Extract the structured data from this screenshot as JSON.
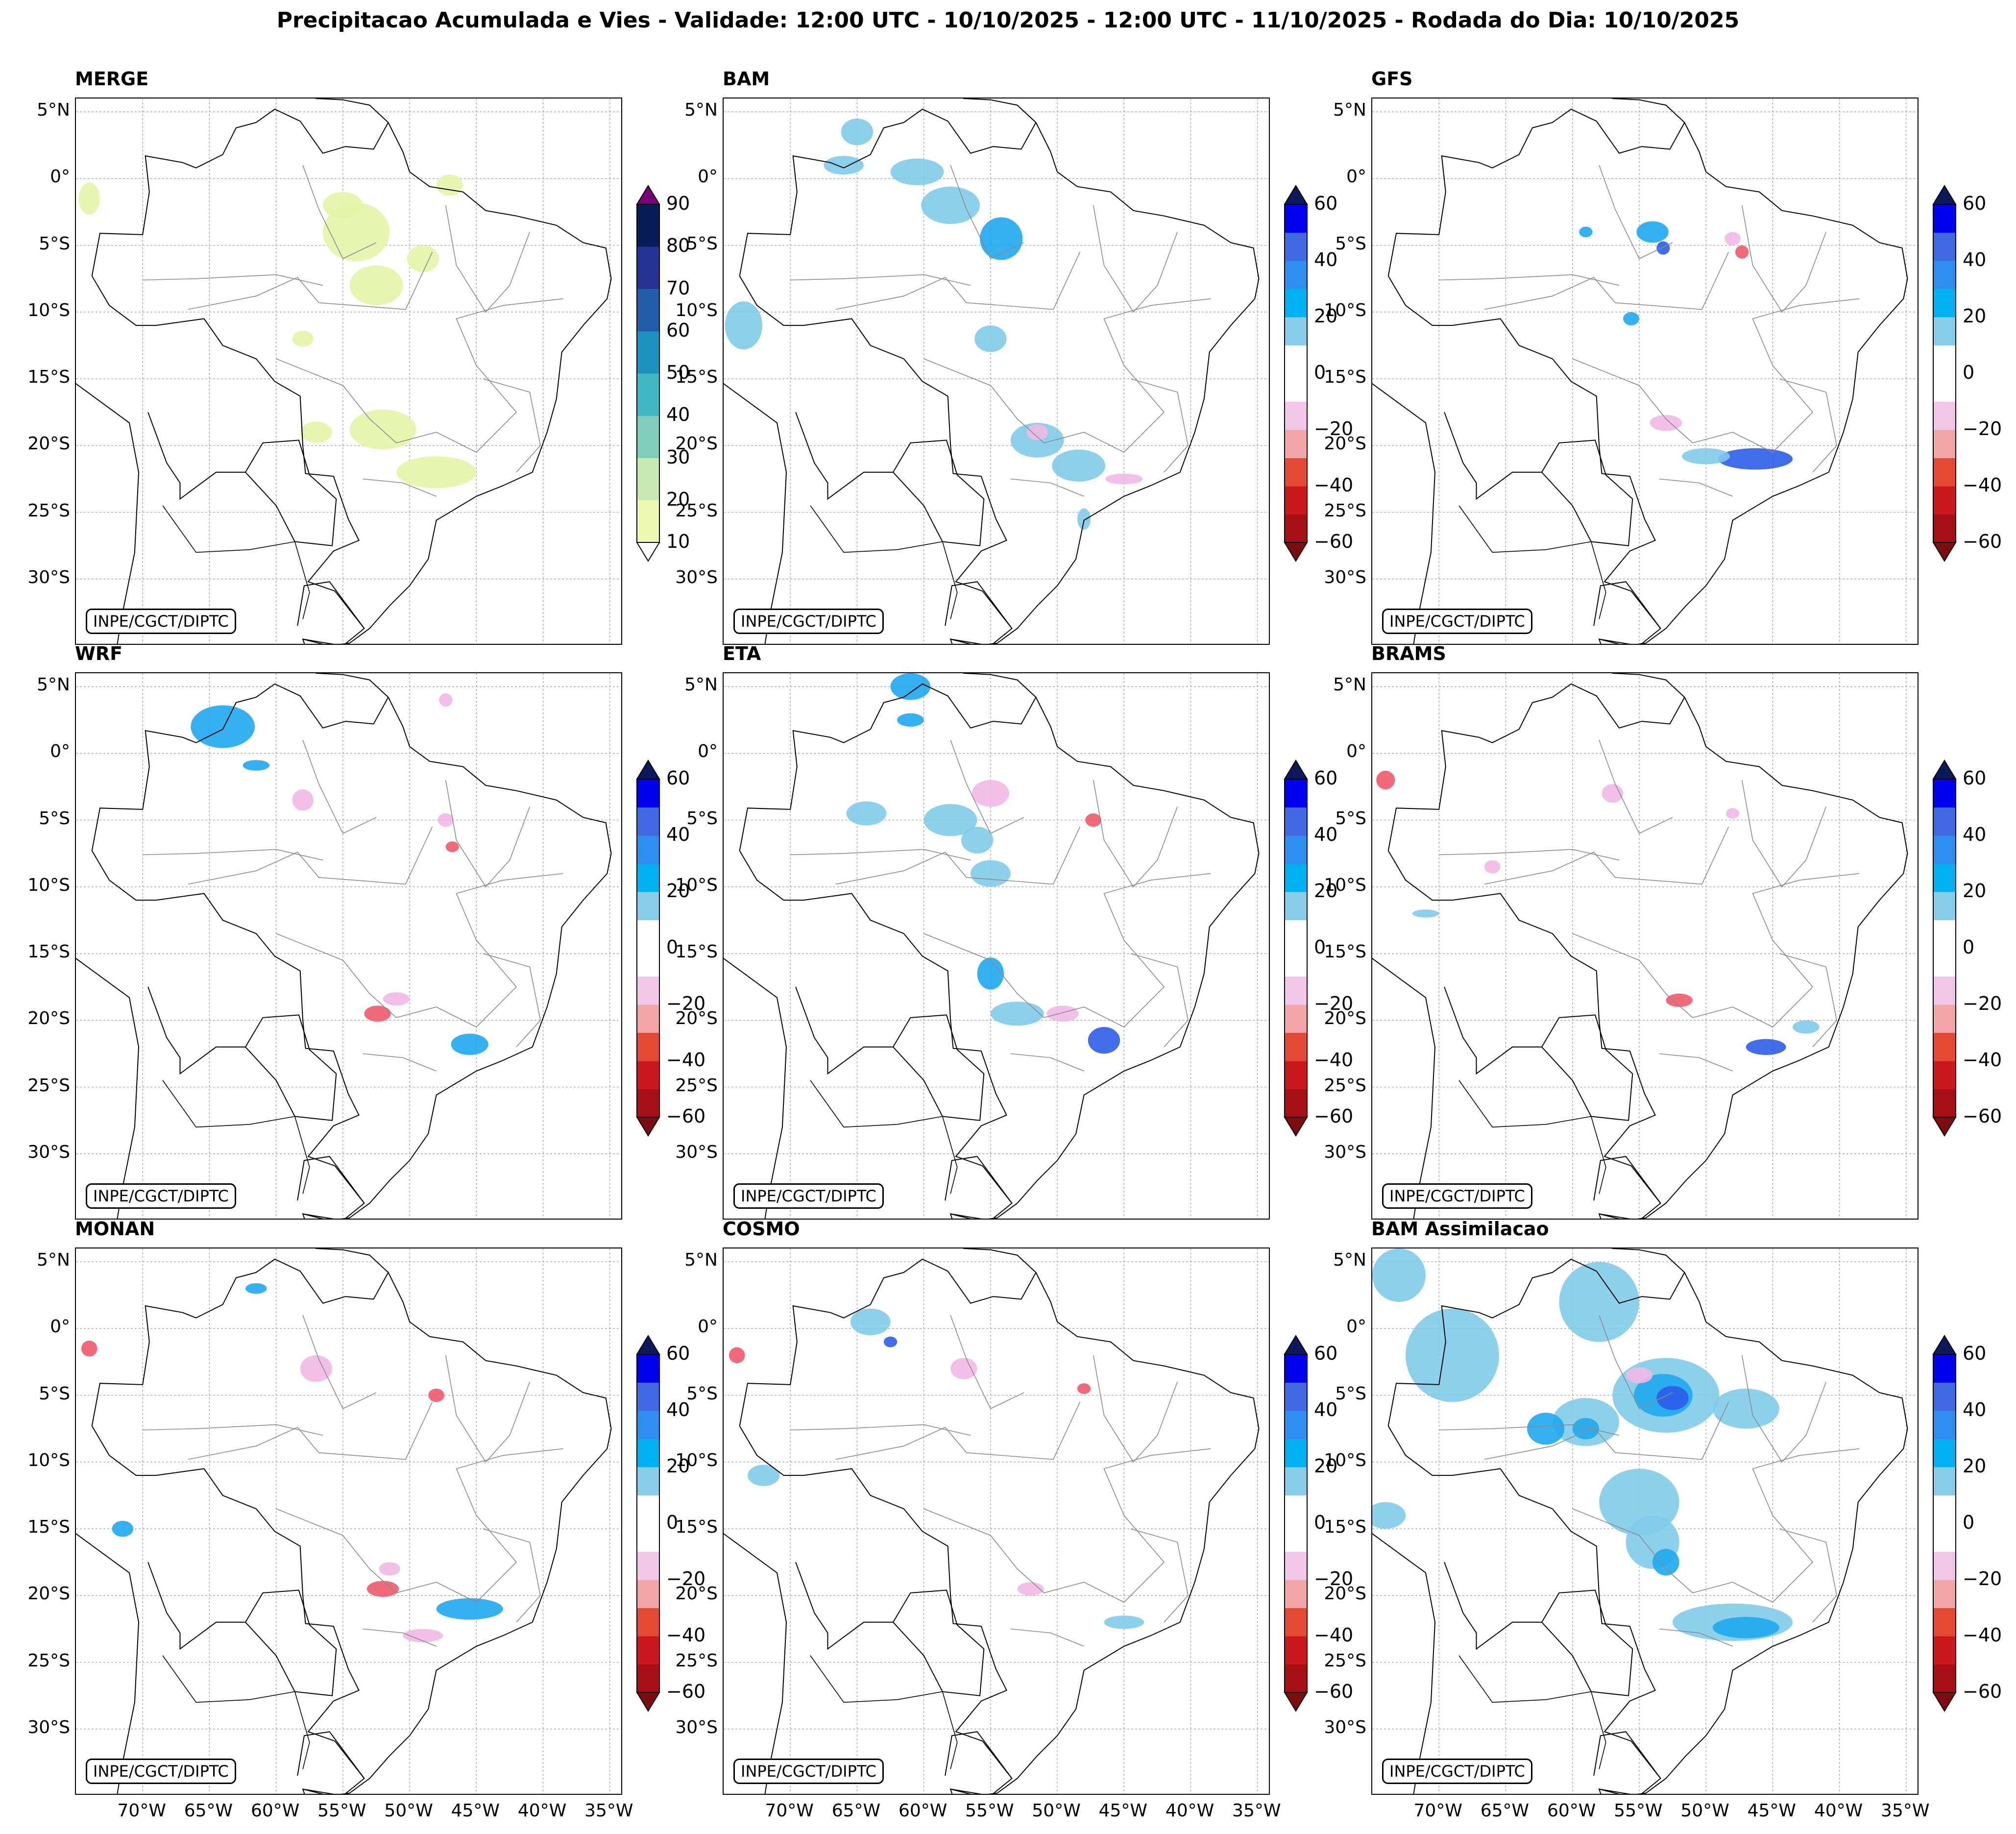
{
  "title": "Precipitacao Acumulada e Vies - Validade: 12:00 UTC - 10/10/2025 - 12:00 UTC - 11/10/2025 - Rodada do Dia: 10/10/2025",
  "credit": "INPE/CGCT/DIPTC",
  "lat_labels": [
    "5°N",
    "0°",
    "5°S",
    "10°S",
    "15°S",
    "20°S",
    "25°S",
    "30°S"
  ],
  "lon_labels": [
    "70°W",
    "65°W",
    "60°W",
    "55°W",
    "50°W",
    "45°W",
    "40°W",
    "35°W"
  ],
  "panels": [
    {
      "name": "MERGE",
      "type": "precip"
    },
    {
      "name": "BAM",
      "type": "bias"
    },
    {
      "name": "GFS",
      "type": "bias"
    },
    {
      "name": "WRF",
      "type": "bias"
    },
    {
      "name": "ETA",
      "type": "bias"
    },
    {
      "name": "BRAMS",
      "type": "bias"
    },
    {
      "name": "MONAN",
      "type": "bias"
    },
    {
      "name": "COSMO",
      "type": "bias"
    },
    {
      "name": "BAM Assimilacao",
      "type": "bias"
    }
  ],
  "precip_colorbar": {
    "ticks": [
      "90",
      "80",
      "70",
      "60",
      "50",
      "40",
      "30",
      "20",
      "10"
    ],
    "colors": [
      "#edf8b1",
      "#c7e9b4",
      "#7fcdbb",
      "#41b6c4",
      "#1d91c0",
      "#225ea8",
      "#253494",
      "#081d58"
    ],
    "over_color": "#7a0177",
    "under_color": "#ffffff"
  },
  "bias_colorbar": {
    "ticks": [
      "60",
      "40",
      "20",
      "0",
      "−20",
      "−40",
      "−60"
    ],
    "colors": [
      "#a50f15",
      "#cb181d",
      "#e34a33",
      "#f4a6a6",
      "#f2c6e6",
      "#ffffff",
      "#ffffff",
      "#87cdea",
      "#00b0f0",
      "#2e8ef0",
      "#4169e1",
      "#0000ee"
    ],
    "over_color": "#0b1a5a",
    "under_color": "#7b0c10"
  },
  "colors": {
    "precip_light": "#e3f5a8",
    "bias_blue_light": "#7fcbea",
    "bias_blue_mid": "#1fa8ef",
    "bias_blue_dark": "#2c5ce8",
    "bias_pink": "#efb8e6",
    "bias_red": "#ee5a6a"
  }
}
